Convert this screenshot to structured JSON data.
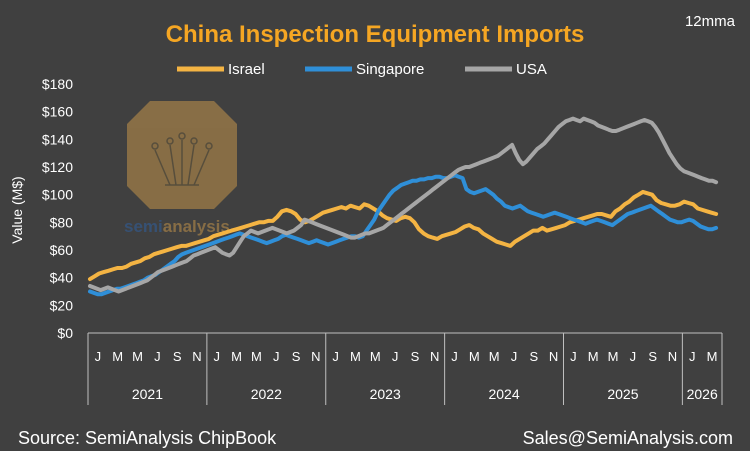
{
  "chart_data": {
    "type": "line",
    "title": "China Inspection Equipment Imports",
    "note": "12mma",
    "ylabel": "Value (M$)",
    "ylim": [
      0,
      180
    ],
    "ytick_step": 20,
    "ytick_labels": [
      "$0",
      "$20",
      "$40",
      "$60",
      "$80",
      "$100",
      "$120",
      "$140",
      "$160",
      "$180"
    ],
    "x_month_labels": [
      "J",
      "M",
      "M",
      "J",
      "S",
      "N",
      "J",
      "M",
      "M",
      "J",
      "S",
      "N",
      "J",
      "M",
      "M",
      "J",
      "S",
      "N",
      "J",
      "M",
      "M",
      "J",
      "S",
      "N",
      "J",
      "M",
      "M",
      "J",
      "S",
      "N",
      "J",
      "M"
    ],
    "x_year_labels": [
      "2021",
      "2022",
      "2023",
      "2024",
      "2025",
      "2026"
    ],
    "series": [
      {
        "name": "Israel",
        "color": "#f4b443",
        "values": [
          39,
          41,
          43,
          44,
          45,
          46,
          47,
          47,
          48,
          50,
          51,
          52,
          54,
          55,
          57,
          58,
          59,
          60,
          61,
          62,
          63,
          63,
          64,
          65,
          66,
          67,
          68,
          70,
          71,
          72,
          73,
          74,
          75,
          76,
          77,
          78,
          79,
          80,
          80,
          81,
          81,
          84,
          88,
          89,
          88,
          86,
          82,
          80,
          81,
          83,
          85,
          87,
          88,
          89,
          90,
          91,
          90,
          92,
          91,
          90,
          93,
          92,
          90,
          88,
          85,
          83,
          82,
          81,
          83,
          84,
          83,
          80,
          75,
          72,
          70,
          69,
          68,
          70,
          71,
          72,
          73,
          75,
          77,
          78,
          76,
          75,
          72,
          70,
          68,
          66,
          65,
          64,
          63,
          66,
          68,
          70,
          72,
          74,
          74,
          76,
          74,
          75,
          76,
          77,
          78,
          80,
          81,
          82,
          83,
          84,
          85,
          86,
          86,
          85,
          84,
          88,
          90,
          93,
          95,
          98,
          100,
          102,
          101,
          100,
          96,
          94,
          93,
          92,
          92,
          93,
          95,
          94,
          93,
          90,
          89,
          88,
          87,
          86
        ]
      },
      {
        "name": "Singapore",
        "color": "#2f8fd8",
        "values": [
          30,
          29,
          28,
          28,
          29,
          30,
          31,
          32,
          32,
          33,
          34,
          35,
          36,
          37,
          38,
          40,
          41,
          42,
          44,
          46,
          48,
          50,
          52,
          55,
          57,
          58,
          59,
          60,
          61,
          62,
          63,
          64,
          65,
          66,
          67,
          68,
          69,
          70,
          71,
          72,
          71,
          70,
          69,
          68,
          67,
          66,
          65,
          66,
          67,
          68,
          70,
          71,
          70,
          69,
          68,
          67,
          66,
          65,
          66,
          67,
          66,
          65,
          64,
          65,
          66,
          67,
          68,
          69,
          70,
          70,
          69,
          70,
          74,
          78,
          82,
          88,
          92,
          96,
          100,
          103,
          105,
          107,
          108,
          109,
          110,
          110,
          111,
          111,
          112,
          112,
          113,
          113,
          112,
          112,
          113,
          114,
          113,
          112,
          104,
          102,
          101,
          102,
          103,
          104,
          102,
          100,
          97,
          95,
          92,
          91,
          90,
          91,
          92,
          90,
          88,
          87,
          86,
          85,
          84,
          85,
          86,
          87,
          86,
          85,
          84,
          83,
          82,
          81,
          80,
          79,
          80,
          81,
          82,
          81,
          80,
          79,
          78,
          80,
          82,
          84,
          86,
          87,
          88,
          89,
          90,
          91,
          92,
          90,
          88,
          86,
          84,
          82,
          81,
          80,
          80,
          81,
          82,
          81,
          79,
          77,
          76,
          75,
          75,
          76
        ]
      },
      {
        "name": "USA",
        "color": "#a6a6a6",
        "values": [
          34,
          33,
          32,
          31,
          32,
          33,
          32,
          31,
          30,
          31,
          32,
          33,
          34,
          35,
          36,
          37,
          38,
          40,
          42,
          44,
          45,
          46,
          47,
          48,
          49,
          50,
          51,
          52,
          54,
          56,
          57,
          58,
          59,
          60,
          61,
          62,
          60,
          58,
          57,
          56,
          58,
          62,
          66,
          70,
          72,
          74,
          73,
          72,
          73,
          74,
          75,
          76,
          75,
          74,
          73,
          72,
          73,
          74,
          76,
          78,
          82,
          81,
          80,
          79,
          78,
          77,
          76,
          75,
          74,
          73,
          72,
          71,
          70,
          69,
          69,
          70,
          71,
          72,
          72,
          73,
          74,
          75,
          76,
          78,
          80,
          82,
          84,
          86,
          88,
          90,
          92,
          94,
          96,
          98,
          100,
          102,
          104,
          106,
          108,
          110,
          112,
          114,
          116,
          118,
          119,
          120,
          120,
          121,
          122,
          123,
          124,
          125,
          126,
          127,
          128,
          130,
          132,
          134,
          136,
          130,
          125,
          122,
          124,
          127,
          130,
          133,
          135,
          137,
          140,
          143,
          146,
          149,
          151,
          153,
          154,
          155,
          154,
          153,
          155,
          154,
          153,
          152,
          150,
          149,
          148,
          147,
          146,
          146,
          147,
          148,
          149,
          150,
          151,
          152,
          153,
          154,
          153,
          152,
          149,
          145,
          140,
          135,
          130,
          126,
          122,
          119,
          117,
          116,
          115,
          114,
          113,
          112,
          111,
          110,
          110,
          109
        ]
      }
    ]
  },
  "legend": {
    "israel": "Israel",
    "singapore": "Singapore",
    "usa": "USA"
  },
  "watermark": {
    "text_a": "semi",
    "text_b": "analysis"
  },
  "footer": {
    "source": "Source: SemiAnalysis ChipBook",
    "email": "Sales@SemiAnalysis.com"
  }
}
